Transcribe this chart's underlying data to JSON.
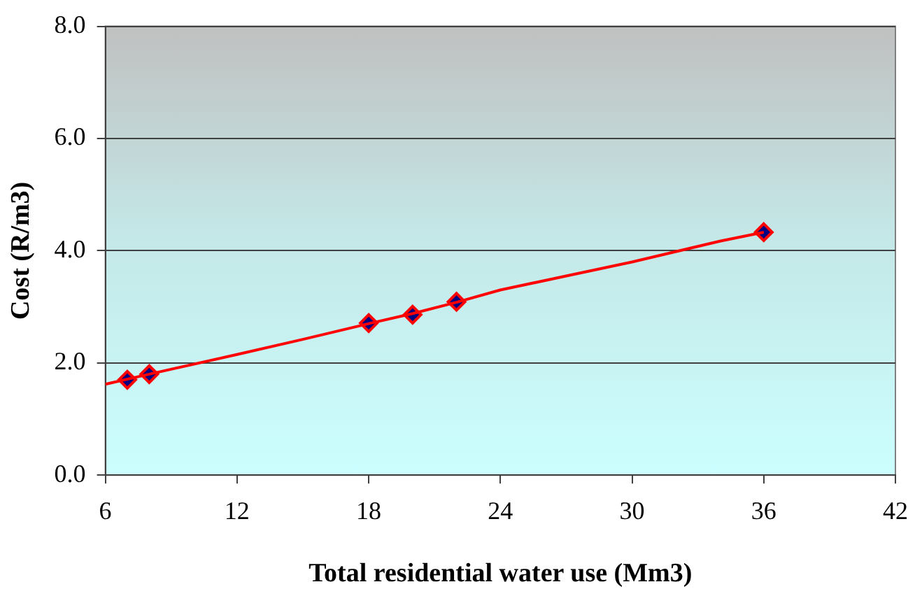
{
  "chart_data": {
    "type": "scatter",
    "xlabel": "Total residential water use (Mm3)",
    "ylabel": "Cost (R/m3)",
    "xlim": [
      6,
      42
    ],
    "xticks": [
      6,
      12,
      18,
      24,
      30,
      36,
      42
    ],
    "ylim": [
      0,
      8
    ],
    "yticks": [
      {
        "value": 0,
        "label": "0.0"
      },
      {
        "value": 2,
        "label": "2.0"
      },
      {
        "value": 4,
        "label": "4.0"
      },
      {
        "value": 6,
        "label": "6.0"
      },
      {
        "value": 8,
        "label": "8.0"
      }
    ],
    "grid": "y",
    "legend": false,
    "series": [
      {
        "type": "line",
        "color": "#ff0000",
        "marker": "none",
        "line_style": "solid",
        "x": [
          6,
          8,
          12,
          15,
          18,
          20,
          22,
          24,
          27,
          30,
          34,
          36
        ],
        "values": [
          1.62,
          1.8,
          2.15,
          2.42,
          2.7,
          2.88,
          3.08,
          3.3,
          3.55,
          3.8,
          4.17,
          4.33
        ]
      },
      {
        "type": "scatter",
        "color": "#000080",
        "marker": "diamond",
        "x": [
          7,
          8,
          18,
          20,
          22,
          36
        ],
        "values": [
          1.7,
          1.8,
          2.71,
          2.86,
          3.09,
          4.33
        ]
      }
    ]
  }
}
